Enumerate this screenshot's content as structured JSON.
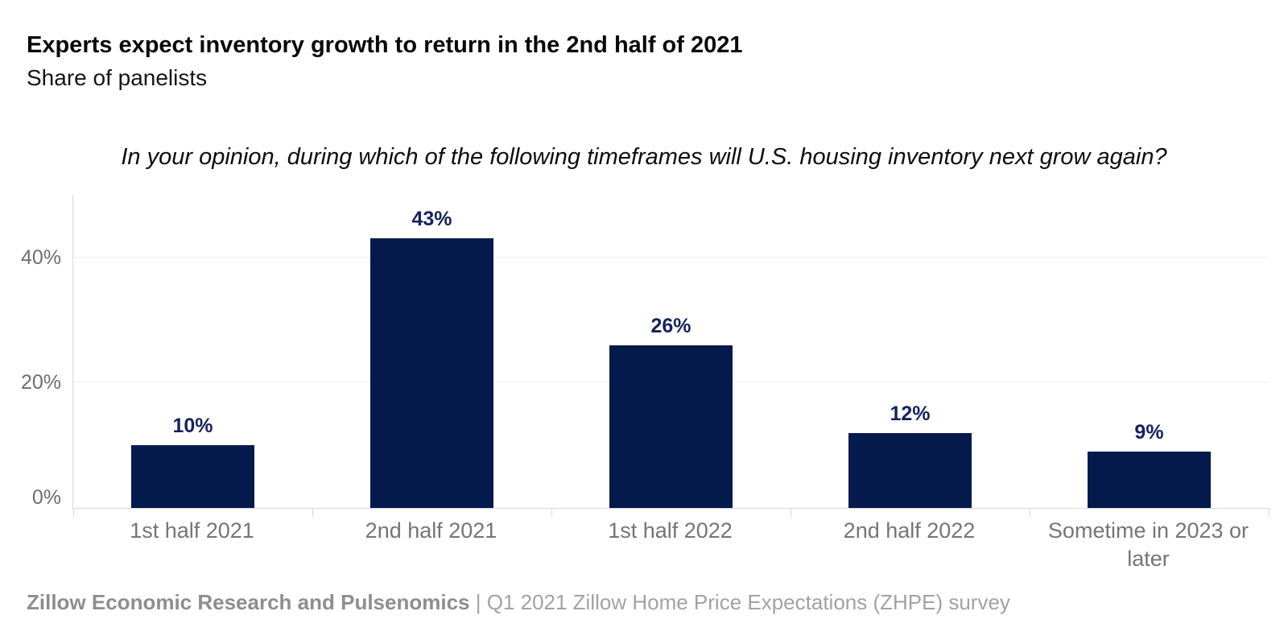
{
  "header": {
    "title": "Experts expect inventory growth to return in the 2nd half of 2021",
    "subtitle": "Share of panelists"
  },
  "question": "In your opinion, during which of the following timeframes will U.S. housing inventory next grow again?",
  "chart_data": {
    "type": "bar",
    "title": "Experts expect inventory growth to return in the 2nd half of 2021",
    "subtitle": "Share of panelists",
    "categories": [
      "1st half 2021",
      "2nd half 2021",
      "1st half 2022",
      "2nd half 2022",
      "Sometime in 2023 or later"
    ],
    "values": [
      10,
      43,
      26,
      12,
      9
    ],
    "value_labels": [
      "10%",
      "43%",
      "26%",
      "12%",
      "9%"
    ],
    "yticks": [
      0,
      20,
      40
    ],
    "ytick_labels": [
      "0%",
      "20%",
      "40%"
    ],
    "ylim": [
      0,
      50
    ],
    "xlabel": "",
    "ylabel": "Share of panelists",
    "grid": "horizontal-at-20-and-40",
    "legend": "none",
    "bar_color": "#041a4d",
    "value_label_color": "#14235c",
    "axis_color": "#d9d9d9",
    "gridline_color": "#ececec",
    "tick_label_color": "#6e6e6e",
    "category_label_color": "#757575"
  },
  "footer": {
    "source_bold": "Zillow Economic Research and Pulsenomics",
    "source_rest": " | Q1 2021 Zillow Home Price Expectations (ZHPE) survey"
  }
}
